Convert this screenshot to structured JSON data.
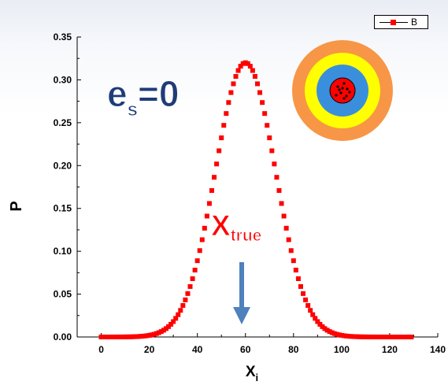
{
  "chart_data": {
    "type": "scatter",
    "xlabel_main": "X",
    "xlabel_sub": "i",
    "ylabel": "P",
    "xlim": [
      -10,
      140
    ],
    "ylim": [
      0,
      0.35
    ],
    "xticks": [
      "0",
      "20",
      "40",
      "60",
      "80",
      "100",
      "120",
      "140"
    ],
    "yticks": [
      "0.00",
      "0.05",
      "0.10",
      "0.15",
      "0.20",
      "0.25",
      "0.30",
      "0.35"
    ],
    "legend": {
      "position": "top-right",
      "label": "B"
    },
    "series": [
      {
        "name": "B",
        "color": "#ff0000",
        "marker": "square",
        "distribution": "normal",
        "mean": 60,
        "sd": 12.5,
        "peak": 0.32,
        "x_start": 0,
        "x_end": 129,
        "x_step": 1
      }
    ],
    "annotations": {
      "es_main": "e",
      "es_sub": "s",
      "es_rest": "=0",
      "xtrue_main": "X",
      "xtrue_sub": "true",
      "arrow_color": "#4f81bd"
    },
    "target_colors": [
      "#f79646",
      "#ffff00",
      "#3a8fdc",
      "#ff0000"
    ]
  }
}
